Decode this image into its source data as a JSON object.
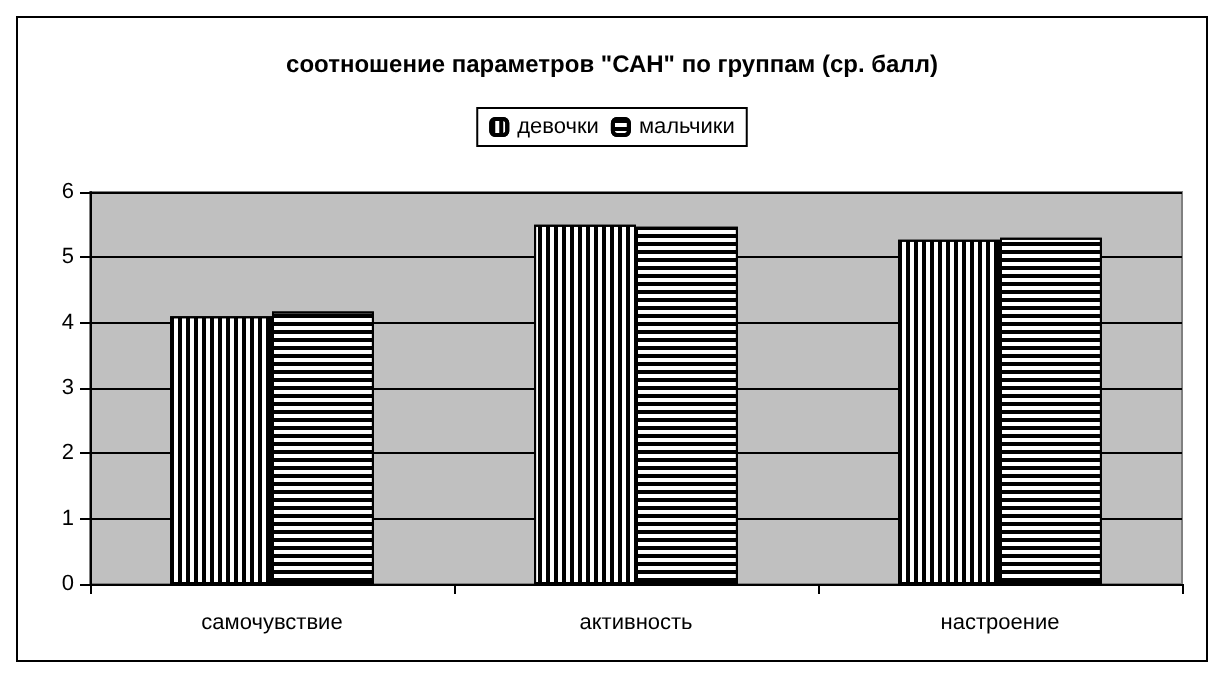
{
  "chart_data": {
    "type": "bar",
    "title": "соотношение параметров \"САН\" по группам (ср. балл)",
    "categories": [
      "самочувствие",
      "активность",
      "настроение"
    ],
    "series": [
      {
        "name": "девочки",
        "color": "#000000",
        "values": [
          4.1,
          5.5,
          5.27
        ]
      },
      {
        "name": "мальчики",
        "color": "#000000",
        "values": [
          4.17,
          5.47,
          5.3
        ]
      }
    ],
    "ylim": [
      0,
      6
    ],
    "yticks": [
      0,
      1,
      2,
      3,
      4,
      5,
      6
    ],
    "grid": "y",
    "legend": "top"
  }
}
